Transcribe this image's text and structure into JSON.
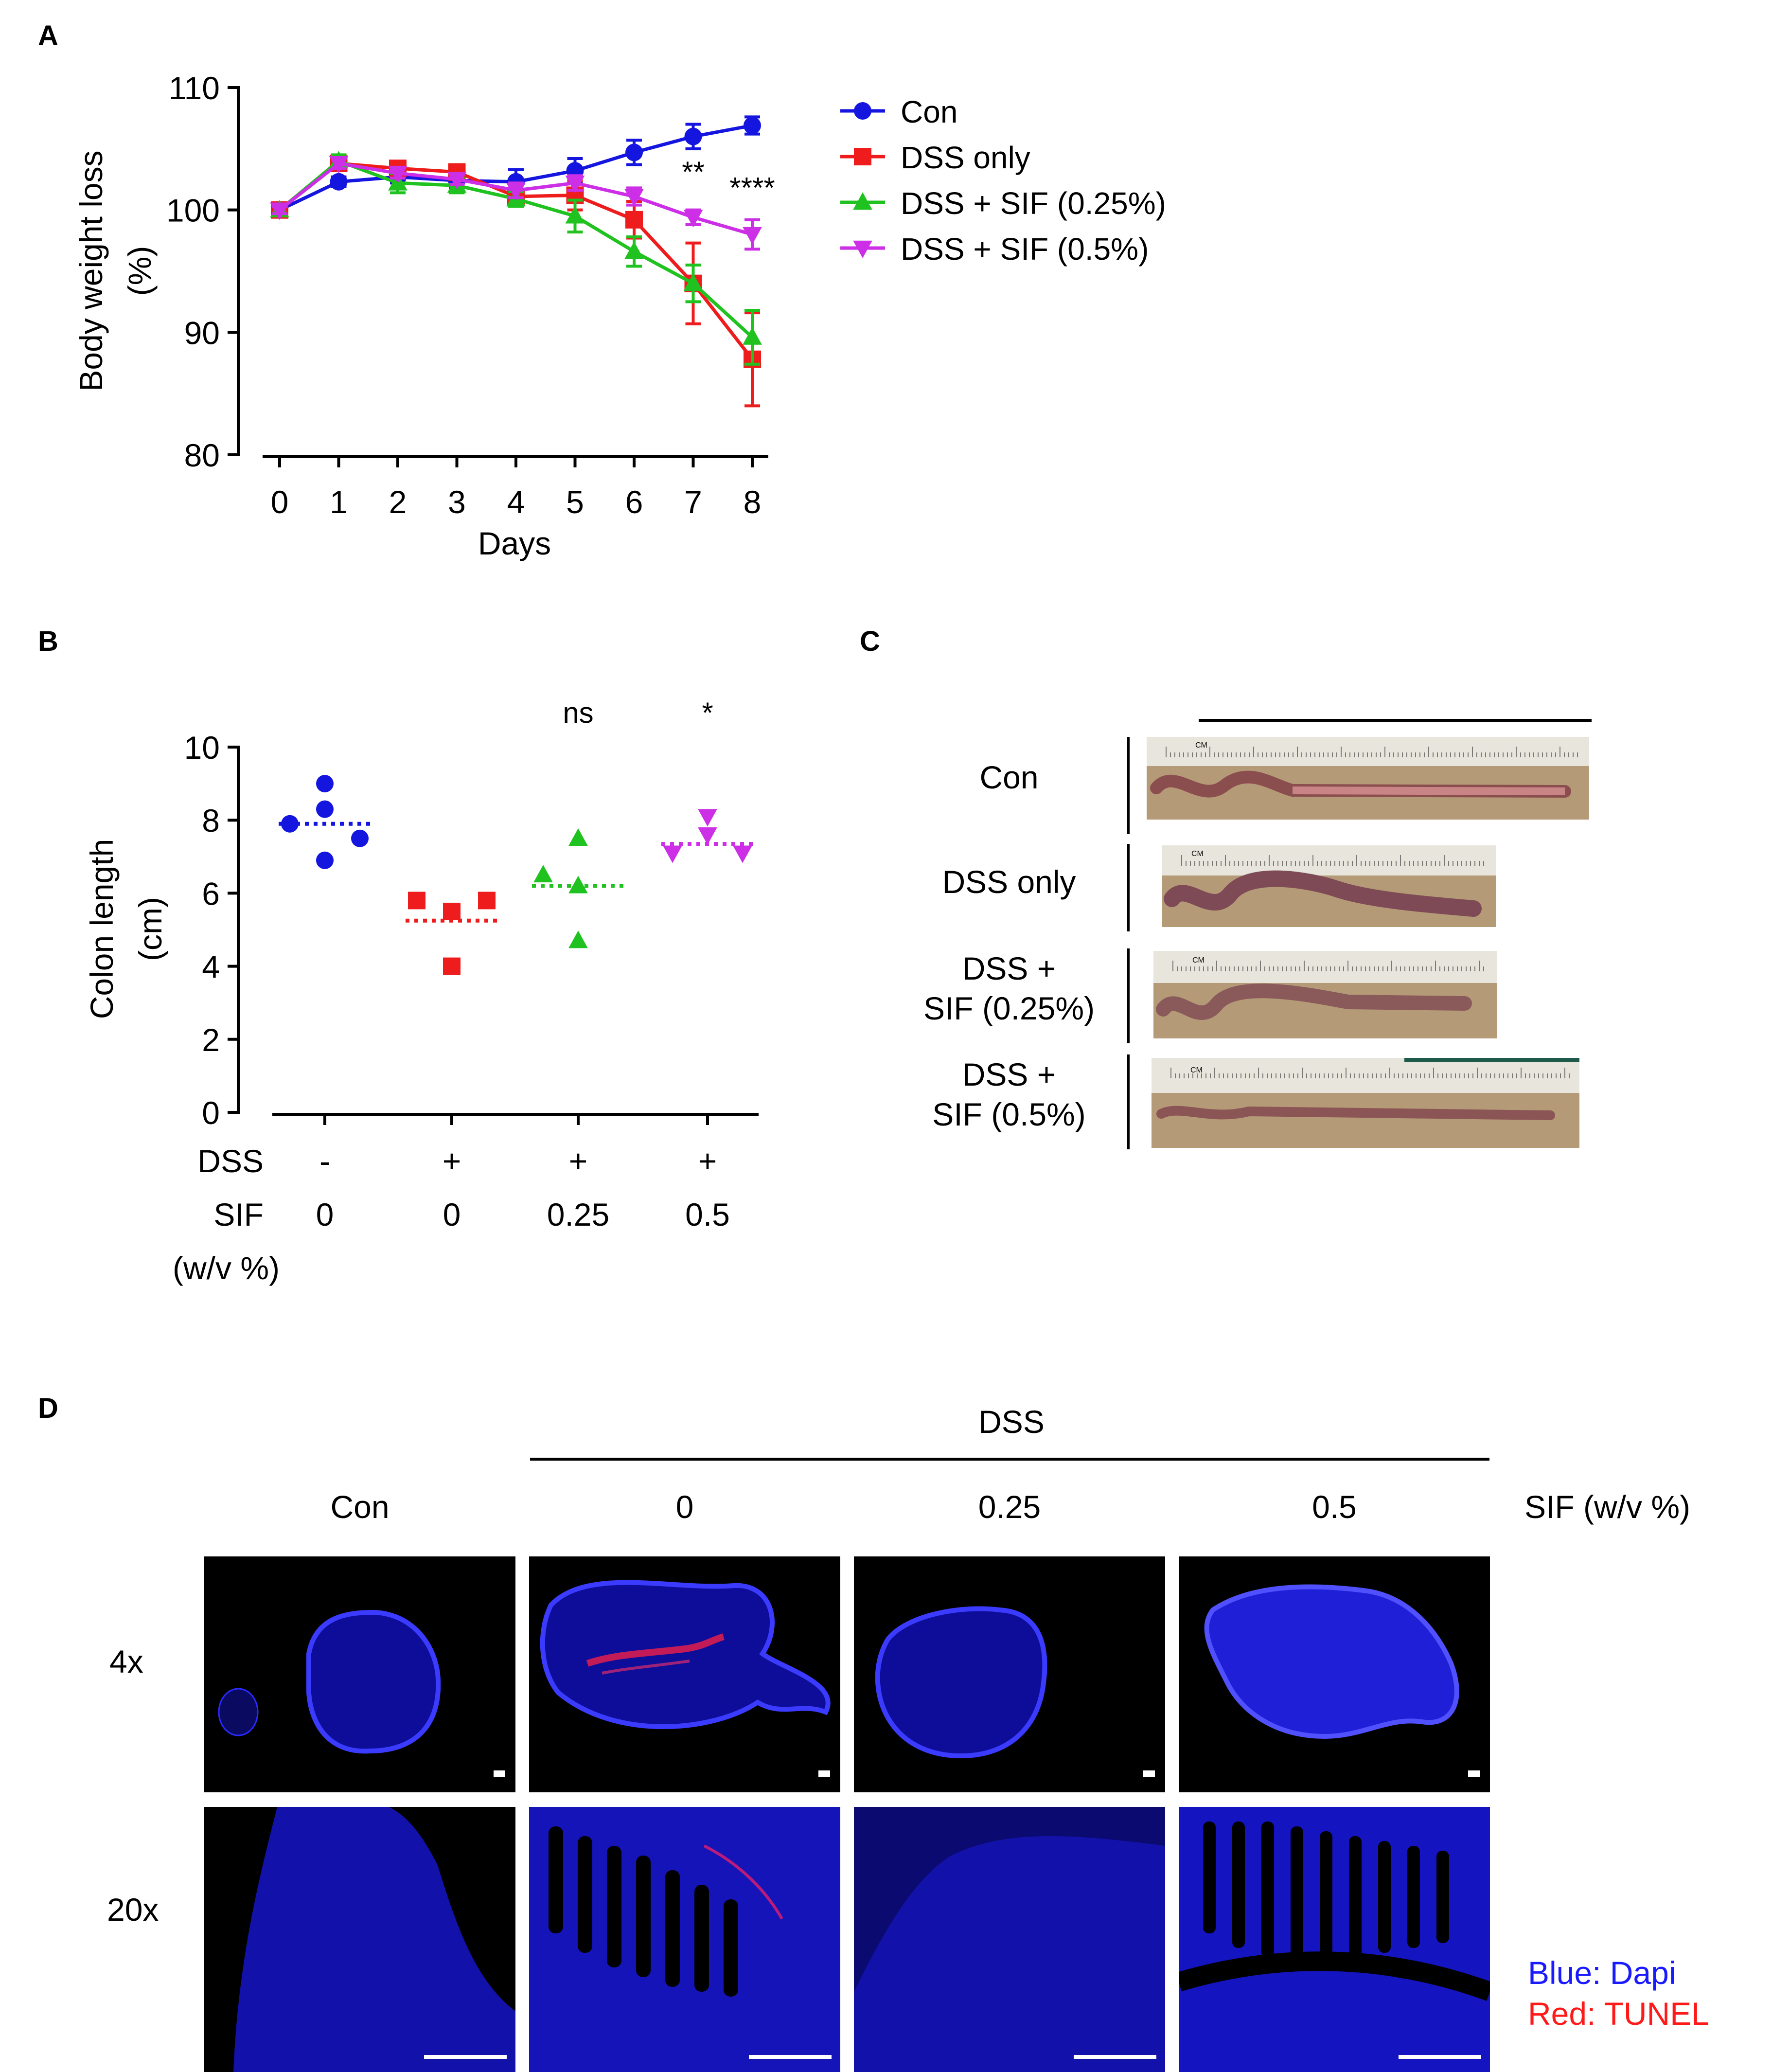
{
  "panels": {
    "a": "A",
    "b": "B",
    "c": "C",
    "d": "D"
  },
  "chart_data": [
    {
      "type": "line",
      "panel": "A",
      "xlabel": "Days",
      "ylabel_line1": "Body weight loss",
      "ylabel_line2": "(%)",
      "ylim": [
        80,
        110
      ],
      "yticks": [
        80,
        90,
        100,
        110
      ],
      "x": [
        0,
        1,
        2,
        3,
        4,
        5,
        6,
        7,
        8
      ],
      "series": [
        {
          "name": "Con",
          "color": "#1515e0",
          "marker": "circle",
          "values": [
            100,
            102.3,
            102.7,
            102.4,
            102.3,
            103.2,
            104.7,
            106.0,
            106.9
          ],
          "errors": [
            0.3,
            0.4,
            0.5,
            0.6,
            1.0,
            1.0,
            1.0,
            1.0,
            0.7
          ]
        },
        {
          "name": "DSS only",
          "color": "#ee1c1c",
          "marker": "square",
          "values": [
            100,
            103.8,
            103.4,
            103.1,
            101.1,
            101.2,
            99.2,
            94.0,
            87.8
          ],
          "errors": [
            0.3,
            0.5,
            0.5,
            0.6,
            0.6,
            1.2,
            1.5,
            3.3,
            3.8
          ]
        },
        {
          "name": "DSS + SIF (0.25%)",
          "color": "#1fc21f",
          "marker": "triangle-up",
          "values": [
            100,
            104.0,
            102.2,
            102.0,
            100.9,
            99.5,
            96.6,
            94.0,
            89.6
          ],
          "errors": [
            0.3,
            0.5,
            0.8,
            0.6,
            0.6,
            1.3,
            1.2,
            1.5,
            2.2
          ]
        },
        {
          "name": "DSS + SIF (0.5%)",
          "color": "#cc2fe6",
          "marker": "triangle-down",
          "values": [
            100,
            103.8,
            103.0,
            102.5,
            101.6,
            102.2,
            101.1,
            99.4,
            98.0
          ],
          "errors": [
            0.3,
            0.4,
            0.4,
            0.4,
            0.6,
            0.6,
            0.7,
            0.6,
            1.2
          ]
        }
      ],
      "annotations": [
        {
          "x": 7,
          "y": 102.3,
          "text": "**"
        },
        {
          "x": 8,
          "y": 101.0,
          "text": "****"
        }
      ]
    },
    {
      "type": "scatter",
      "panel": "B",
      "ylabel_line1": "Colon length",
      "ylabel_line2": "(cm)",
      "ylim": [
        0,
        10
      ],
      "yticks": [
        0,
        2,
        4,
        6,
        8,
        10
      ],
      "groups": [
        {
          "color": "#1515e0",
          "marker": "circle",
          "mean": 7.9,
          "points": [
            9.0,
            8.3,
            7.9,
            7.5,
            6.9
          ],
          "offsets": [
            0,
            0,
            -2,
            2,
            0
          ],
          "sig": ""
        },
        {
          "color": "#ee1c1c",
          "marker": "square",
          "mean": 5.25,
          "points": [
            5.8,
            5.5,
            5.8,
            4.0
          ],
          "offsets": [
            -2,
            0,
            2,
            0
          ],
          "sig": ""
        },
        {
          "color": "#1fc21f",
          "marker": "triangle-up",
          "mean": 6.2,
          "points": [
            7.5,
            6.5,
            6.2,
            4.7
          ],
          "offsets": [
            0,
            -2,
            0,
            0
          ],
          "sig": "ns"
        },
        {
          "color": "#cc2fe6",
          "marker": "triangle-down",
          "mean": 7.35,
          "points": [
            8.1,
            7.6,
            7.1,
            7.1
          ],
          "offsets": [
            0,
            0,
            -2,
            2
          ],
          "sig": "*"
        }
      ],
      "rows": [
        {
          "label": "DSS",
          "values": [
            "-",
            "+",
            "+",
            "+"
          ]
        },
        {
          "label": "SIF",
          "values": [
            "0",
            "0",
            "0.25",
            "0.5"
          ]
        }
      ],
      "sif_unit": "(w/v %)"
    }
  ],
  "panel_c": {
    "rows": [
      {
        "line1": "Con",
        "line2": ""
      },
      {
        "line1": "DSS only",
        "line2": ""
      },
      {
        "line1": "DSS +",
        "line2": "SIF (0.25%)"
      },
      {
        "line1": "DSS +",
        "line2": "SIF (0.5%)"
      }
    ],
    "ruler_label": "CM"
  },
  "panel_d": {
    "dss_label": "DSS",
    "columns": [
      "Con",
      "0",
      "0.25",
      "0.5"
    ],
    "sif_label": "SIF (w/v %)",
    "rows": [
      "4x",
      "20x"
    ],
    "legend_blue": "Blue: Dapi",
    "legend_red": "Red: TUNEL",
    "blue_color": "#1a1aff",
    "red_color": "#ff1a1a"
  }
}
